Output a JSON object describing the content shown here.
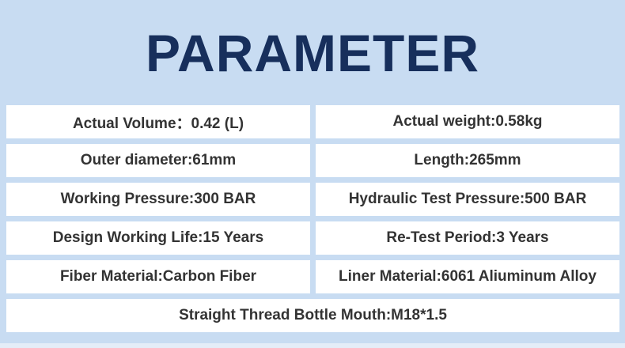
{
  "title": "PARAMETER",
  "params": [
    "Actual Volume：0.42 (L)",
    "Actual weight:0.58kg",
    "Outer diameter:61mm",
    "Length:265mm",
    "Working Pressure:300 BAR",
    "Hydraulic Test Pressure:500 BAR",
    "Design Working Life:15 Years",
    "Re-Test Period:3 Years",
    "Fiber Material:Carbon Fiber",
    "Liner Material:6061 Aliuminum Alloy",
    "Straight Thread Bottle Mouth:M18*1.5"
  ],
  "colors": {
    "background": "#c8dcf2",
    "title": "#172f5c",
    "cell": "#ffffff",
    "text": "#333333"
  }
}
